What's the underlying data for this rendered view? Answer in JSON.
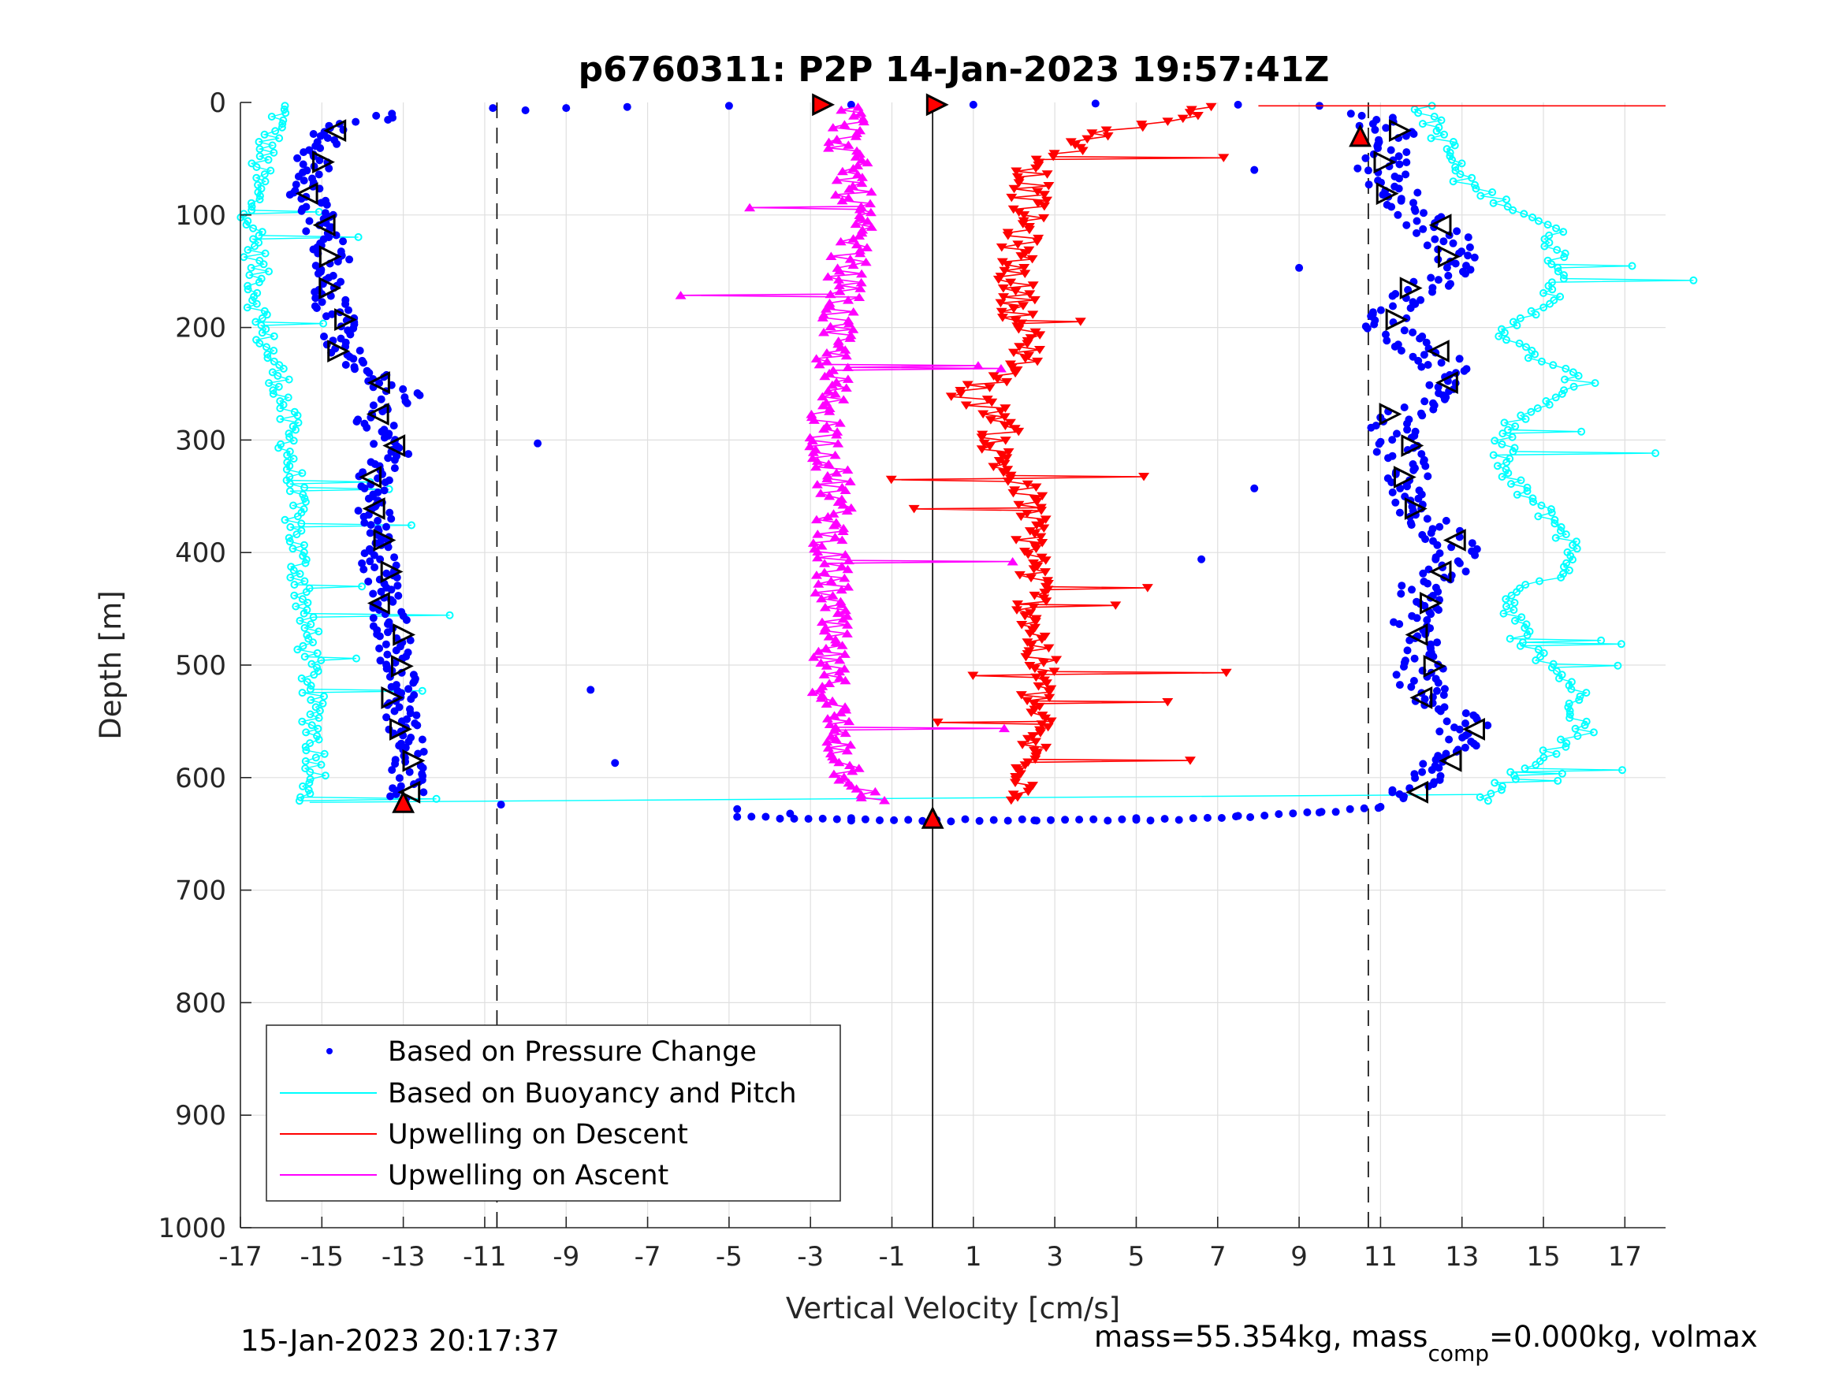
{
  "chart_data": {
    "type": "scatter",
    "title": "p6760311: P2P 14-Jan-2023 19:57:41Z",
    "xlabel": "Vertical Velocity [cm/s]",
    "ylabel": "Depth [m]",
    "xlim": [
      -17,
      18
    ],
    "ylim": [
      0,
      1000
    ],
    "y_reversed": true,
    "grid": true,
    "xticks": [
      -17,
      -15,
      -13,
      -11,
      -9,
      -7,
      -5,
      -3,
      -1,
      1,
      3,
      5,
      7,
      9,
      11,
      13,
      15,
      17
    ],
    "yticks": [
      0,
      100,
      200,
      300,
      400,
      500,
      600,
      700,
      800,
      900,
      1000
    ],
    "reference_lines": [
      {
        "x": -10.7,
        "style": "dashed"
      },
      {
        "x": 0,
        "style": "solid"
      },
      {
        "x": 10.7,
        "style": "dashed"
      }
    ],
    "legend_position": "bottom-left",
    "legend": [
      {
        "label": "Based on Pressure Change",
        "color": "#0000ff",
        "marker": "dot"
      },
      {
        "label": "Based on Buoyancy and Pitch",
        "color": "#00ffff",
        "marker": "line"
      },
      {
        "label": "Upwelling on Descent",
        "color": "#ff0000",
        "marker": "line"
      },
      {
        "label": "Upwelling on Ascent",
        "color": "#ff00ff",
        "marker": "line"
      }
    ],
    "series": [
      {
        "name": "Based on Pressure Change",
        "color": "#0000ff",
        "descent": [
          {
            "d": 5,
            "v": -12.5
          },
          {
            "d": 25,
            "v": -14.9
          },
          {
            "d": 50,
            "v": -15.2
          },
          {
            "d": 80,
            "v": -15.4
          },
          {
            "d": 110,
            "v": -15.0
          },
          {
            "d": 140,
            "v": -14.7
          },
          {
            "d": 170,
            "v": -14.8
          },
          {
            "d": 200,
            "v": -14.6
          },
          {
            "d": 230,
            "v": -14.4
          },
          {
            "d": 260,
            "v": -13.0
          },
          {
            "d": 280,
            "v": -13.8
          },
          {
            "d": 310,
            "v": -13.2
          },
          {
            "d": 340,
            "v": -13.8
          },
          {
            "d": 370,
            "v": -13.7
          },
          {
            "d": 400,
            "v": -13.6
          },
          {
            "d": 430,
            "v": -13.5
          },
          {
            "d": 460,
            "v": -13.3
          },
          {
            "d": 490,
            "v": -13.2
          },
          {
            "d": 520,
            "v": -13.1
          },
          {
            "d": 550,
            "v": -13.0
          },
          {
            "d": 580,
            "v": -12.9
          },
          {
            "d": 610,
            "v": -12.9
          },
          {
            "d": 625,
            "v": -13.0
          }
        ],
        "ascent": [
          {
            "d": 620,
            "v": 11.8
          },
          {
            "d": 600,
            "v": 12.0
          },
          {
            "d": 570,
            "v": 12.8
          },
          {
            "d": 550,
            "v": 13.1
          },
          {
            "d": 520,
            "v": 12.0
          },
          {
            "d": 490,
            "v": 11.9
          },
          {
            "d": 460,
            "v": 11.9
          },
          {
            "d": 430,
            "v": 12.1
          },
          {
            "d": 400,
            "v": 13.0
          },
          {
            "d": 370,
            "v": 12.0
          },
          {
            "d": 340,
            "v": 11.7
          },
          {
            "d": 310,
            "v": 11.4
          },
          {
            "d": 280,
            "v": 11.3
          },
          {
            "d": 260,
            "v": 12.9
          },
          {
            "d": 230,
            "v": 12.5
          },
          {
            "d": 200,
            "v": 11.2
          },
          {
            "d": 175,
            "v": 11.5
          },
          {
            "d": 150,
            "v": 12.9
          },
          {
            "d": 120,
            "v": 12.6
          },
          {
            "d": 90,
            "v": 11.6
          },
          {
            "d": 60,
            "v": 11.0
          },
          {
            "d": 35,
            "v": 11.5
          },
          {
            "d": 10,
            "v": 10.7
          }
        ],
        "bottom_turn": [
          {
            "d": 624,
            "v": -10.6
          },
          {
            "d": 628,
            "v": -4.8
          },
          {
            "d": 632,
            "v": -3.5
          },
          {
            "d": 636,
            "v": -2.0
          },
          {
            "d": 638,
            "v": 0
          },
          {
            "d": 638,
            "v": 2.5
          },
          {
            "d": 636,
            "v": 5.0
          },
          {
            "d": 634,
            "v": 7.5
          },
          {
            "d": 631,
            "v": 9.5
          },
          {
            "d": 626,
            "v": 11.0
          }
        ],
        "surface": [
          {
            "d": 5,
            "v": -10.8
          },
          {
            "d": 7,
            "v": -10.0
          },
          {
            "d": 5,
            "v": -9.0
          },
          {
            "d": 4,
            "v": -7.5
          },
          {
            "d": 3,
            "v": -5.0
          },
          {
            "d": 2,
            "v": -2.0
          },
          {
            "d": 2,
            "v": 1.0
          },
          {
            "d": 1,
            "v": 4.0
          },
          {
            "d": 2,
            "v": 7.5
          },
          {
            "d": 3,
            "v": 9.5
          }
        ],
        "outliers": [
          {
            "d": 303,
            "v": -9.7
          },
          {
            "d": 522,
            "v": -8.4
          },
          {
            "d": 587,
            "v": -7.8
          },
          {
            "d": 147,
            "v": 9.0
          },
          {
            "d": 343,
            "v": 7.9
          },
          {
            "d": 406,
            "v": 6.6
          },
          {
            "d": 60,
            "v": 7.9
          }
        ]
      },
      {
        "name": "Based on Buoyancy and Pitch",
        "color": "#00ffff",
        "descent": [
          {
            "d": 10,
            "v": -16.0
          },
          {
            "d": 50,
            "v": -16.5
          },
          {
            "d": 100,
            "v": -16.7
          },
          {
            "d": 150,
            "v": -16.6
          },
          {
            "d": 200,
            "v": -16.5
          },
          {
            "d": 250,
            "v": -16.0
          },
          {
            "d": 300,
            "v": -15.8
          },
          {
            "d": 350,
            "v": -15.7
          },
          {
            "d": 400,
            "v": -15.6
          },
          {
            "d": 450,
            "v": -15.4
          },
          {
            "d": 500,
            "v": -15.3
          },
          {
            "d": 550,
            "v": -15.2
          },
          {
            "d": 600,
            "v": -15.1
          },
          {
            "d": 620,
            "v": -15.3
          }
        ],
        "ascent": [
          {
            "d": 620,
            "v": 13.5
          },
          {
            "d": 590,
            "v": 14.6
          },
          {
            "d": 560,
            "v": 16.0
          },
          {
            "d": 520,
            "v": 15.8
          },
          {
            "d": 480,
            "v": 14.5
          },
          {
            "d": 440,
            "v": 14.2
          },
          {
            "d": 410,
            "v": 15.8
          },
          {
            "d": 380,
            "v": 15.5
          },
          {
            "d": 330,
            "v": 14.0
          },
          {
            "d": 290,
            "v": 14.0
          },
          {
            "d": 250,
            "v": 16.0
          },
          {
            "d": 210,
            "v": 14.0
          },
          {
            "d": 160,
            "v": 15.5
          },
          {
            "d": 110,
            "v": 15.2
          },
          {
            "d": 70,
            "v": 13.0
          },
          {
            "d": 30,
            "v": 12.5
          },
          {
            "d": 5,
            "v": 12.0
          }
        ]
      },
      {
        "name": "Upwelling on Descent",
        "color": "#ff0000",
        "profile": [
          {
            "d": 5,
            "v": 7.0
          },
          {
            "d": 30,
            "v": 4.0
          },
          {
            "d": 60,
            "v": 2.5
          },
          {
            "d": 100,
            "v": 2.3
          },
          {
            "d": 150,
            "v": 2.0
          },
          {
            "d": 200,
            "v": 2.2
          },
          {
            "d": 230,
            "v": 2.4
          },
          {
            "d": 260,
            "v": 0.8
          },
          {
            "d": 280,
            "v": 1.8
          },
          {
            "d": 310,
            "v": 1.5
          },
          {
            "d": 350,
            "v": 2.3
          },
          {
            "d": 400,
            "v": 2.5
          },
          {
            "d": 450,
            "v": 2.5
          },
          {
            "d": 500,
            "v": 2.6
          },
          {
            "d": 550,
            "v": 2.5
          },
          {
            "d": 600,
            "v": 2.4
          },
          {
            "d": 620,
            "v": 2.3
          }
        ]
      },
      {
        "name": "Upwelling on Ascent",
        "color": "#ff00ff",
        "profile": [
          {
            "d": 620,
            "v": -1.3
          },
          {
            "d": 600,
            "v": -2.0
          },
          {
            "d": 550,
            "v": -2.4
          },
          {
            "d": 500,
            "v": -2.6
          },
          {
            "d": 450,
            "v": -2.5
          },
          {
            "d": 400,
            "v": -2.5
          },
          {
            "d": 350,
            "v": -2.4
          },
          {
            "d": 300,
            "v": -2.6
          },
          {
            "d": 250,
            "v": -2.5
          },
          {
            "d": 200,
            "v": -2.4
          },
          {
            "d": 150,
            "v": -2.1
          },
          {
            "d": 100,
            "v": -1.9
          },
          {
            "d": 60,
            "v": -2.0
          },
          {
            "d": 30,
            "v": -2.2
          },
          {
            "d": 5,
            "v": -1.8
          }
        ]
      }
    ]
  },
  "footer": {
    "timestamp": "15-Jan-2023 20:17:37",
    "mass_text_a": "mass=55.354kg, mass",
    "mass_sub": "comp",
    "mass_text_b": "=0.000kg, volmax"
  }
}
